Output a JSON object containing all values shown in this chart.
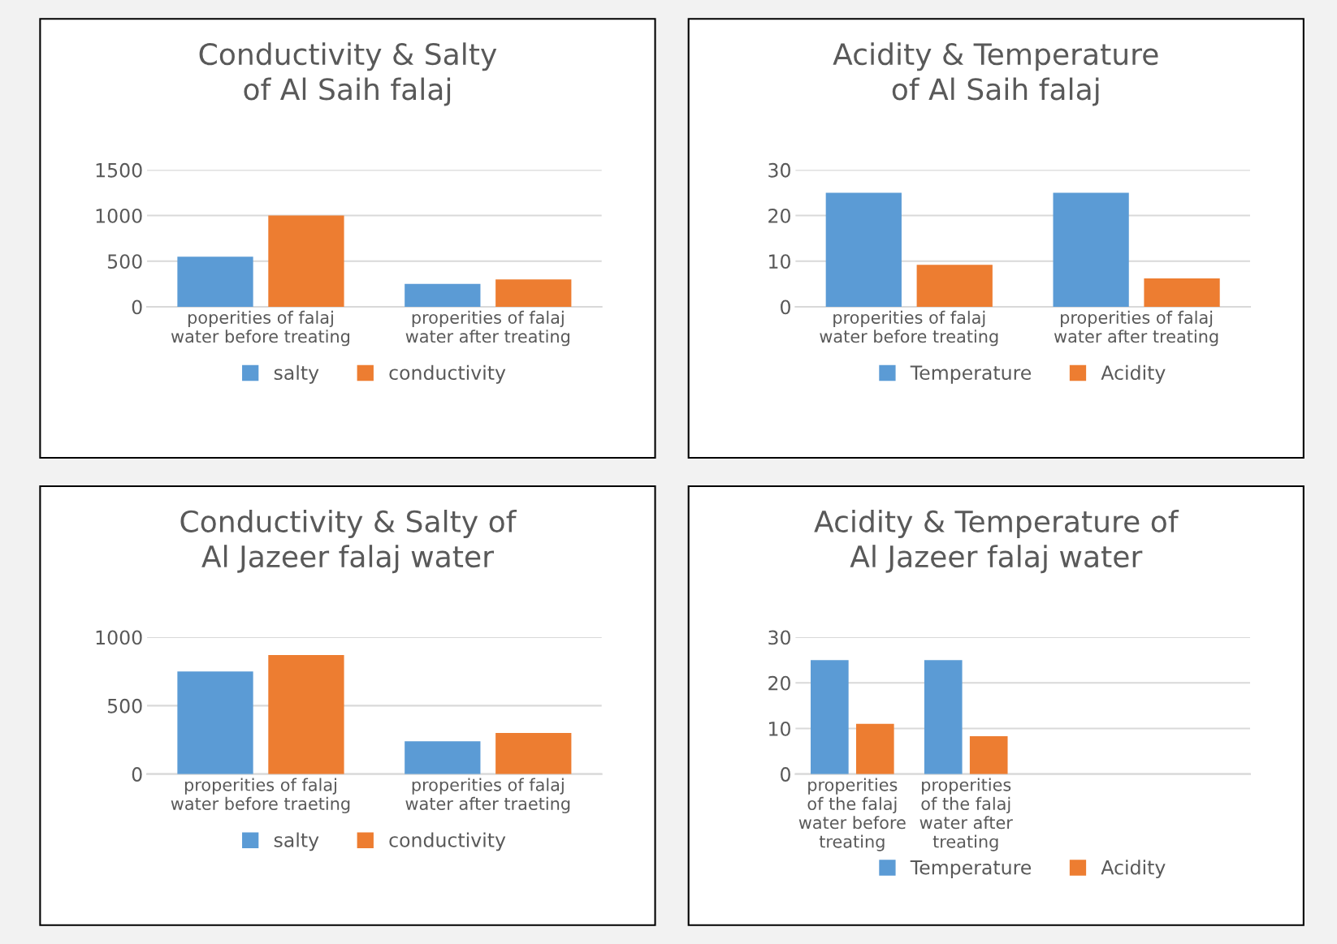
{
  "chart_data": [
    {
      "type": "bar",
      "title": "Conductivity & Salty of Al Saih falaj",
      "categories": [
        "poperities of falaj water before treating",
        "properities of falaj water after treating"
      ],
      "series": [
        {
          "name": "salty",
          "color": "#5b9bd5",
          "values": [
            550,
            250
          ]
        },
        {
          "name": "conductivity",
          "color": "#ed7d31",
          "values": [
            1000,
            300
          ]
        }
      ],
      "ylim": [
        0,
        1500
      ],
      "yticks": [
        0,
        500,
        1000,
        1500
      ],
      "grid": "y",
      "legend": "bottom"
    },
    {
      "type": "bar",
      "title": "Acidity & Temperature of Al Saih falaj",
      "categories": [
        "properities of falaj water before treating",
        "properities of falaj water after treating"
      ],
      "series": [
        {
          "name": "Temperature",
          "color": "#5b9bd5",
          "values": [
            25,
            25
          ]
        },
        {
          "name": "Acidity",
          "color": "#ed7d31",
          "values": [
            9.2,
            6.2
          ]
        }
      ],
      "ylim": [
        0,
        30
      ],
      "yticks": [
        0,
        10,
        20,
        30
      ],
      "grid": "y",
      "legend": "bottom"
    },
    {
      "type": "bar",
      "title": "Conductivity & Salty of Al Jazeer falaj water",
      "categories": [
        "properities of falaj water before traeting",
        "properities of falaj water after traeting"
      ],
      "series": [
        {
          "name": "salty",
          "color": "#5b9bd5",
          "values": [
            750,
            240
          ]
        },
        {
          "name": "conductivity",
          "color": "#ed7d31",
          "values": [
            870,
            300
          ]
        }
      ],
      "ylim": [
        0,
        1000
      ],
      "yticks": [
        0,
        500,
        1000
      ],
      "grid": "y",
      "legend": "bottom"
    },
    {
      "type": "bar",
      "title": "Acidity & Temperature of Al Jazeer falaj water",
      "categories": [
        "properities of the falaj water before treating",
        "properities of the falaj water after treating",
        null,
        null
      ],
      "series": [
        {
          "name": "Temperature",
          "color": "#5b9bd5",
          "values": [
            25,
            25,
            null,
            null
          ]
        },
        {
          "name": "Acidity",
          "color": "#ed7d31",
          "values": [
            11,
            8.3,
            null,
            null
          ]
        }
      ],
      "ylim": [
        0,
        30
      ],
      "yticks": [
        0,
        10,
        20,
        30
      ],
      "grid": "y",
      "legend": "bottom"
    }
  ]
}
